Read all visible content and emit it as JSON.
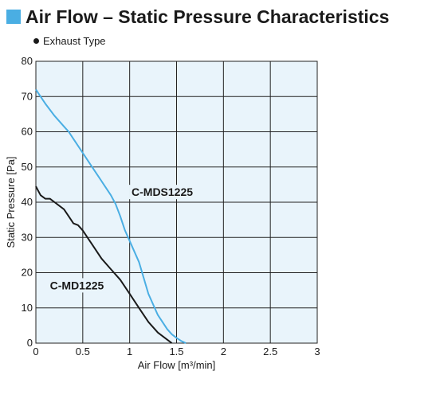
{
  "header": {
    "title": "Air Flow – Static Pressure Characteristics",
    "subtitle": "Exhaust Type"
  },
  "colors": {
    "accent": "#4aaee3",
    "plot_background": "#e9f4fb",
    "grid": "#222222"
  },
  "chart_data": {
    "type": "line",
    "xlabel": "Air Flow [m³/min]",
    "ylabel": "Static Pressure [Pa]",
    "xlim": [
      0,
      3
    ],
    "ylim": [
      0,
      80
    ],
    "xticks": [
      "0",
      "0.5",
      "1",
      "1.5",
      "2",
      "2.5",
      "3"
    ],
    "yticks": [
      "0",
      "10",
      "20",
      "30",
      "40",
      "50",
      "60",
      "70",
      "80"
    ],
    "grid": true,
    "series": [
      {
        "name": "C-MDS1225",
        "color": "#4aaee3",
        "x": [
          0,
          0.1,
          0.2,
          0.3,
          0.35,
          0.4,
          0.5,
          0.6,
          0.7,
          0.8,
          0.85,
          0.9,
          0.95,
          1.0,
          1.1,
          1.2,
          1.3,
          1.4,
          1.45,
          1.5,
          1.55,
          1.6
        ],
        "y": [
          72,
          68,
          64.5,
          61.5,
          60,
          58,
          54,
          50,
          46,
          42,
          39.5,
          36,
          32,
          29,
          23,
          14,
          8,
          4,
          2.5,
          1.5,
          0.6,
          0
        ]
      },
      {
        "name": "C-MD1225",
        "color": "#1a1a1a",
        "x": [
          0,
          0.05,
          0.1,
          0.15,
          0.2,
          0.3,
          0.35,
          0.4,
          0.45,
          0.5,
          0.6,
          0.7,
          0.8,
          0.9,
          1.0,
          1.1,
          1.2,
          1.3,
          1.4,
          1.45
        ],
        "y": [
          44.5,
          42,
          41,
          41,
          40,
          38,
          36,
          34,
          33.5,
          32,
          28,
          24,
          21,
          18,
          14,
          10,
          6,
          3,
          1,
          0
        ]
      }
    ],
    "annotations": [
      {
        "text": "C-MDS1225",
        "x": 1.02,
        "y": 42
      },
      {
        "text": "C-MD1225",
        "x": 0.15,
        "y": 15.5
      }
    ]
  }
}
